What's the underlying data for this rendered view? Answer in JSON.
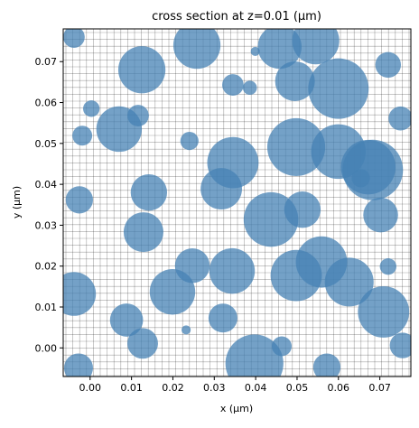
{
  "chart_data": {
    "type": "scatter",
    "title": "cross section at z=0.01 (μm)",
    "x_label": "x (μm)",
    "y_label": "y (μm)",
    "color": "#4682b4",
    "x": [
      -0.0039,
      0.0125,
      0.0258,
      0.0345,
      0.0386,
      0.0458,
      0.0545,
      0.0399,
      0.0495,
      0.06,
      0.072,
      0.0003,
      0.0116,
      0.075,
      -0.0019,
      0.007,
      0.024,
      0.0345,
      0.0498,
      0.06,
      0.0672,
      0.0683,
      0.0654,
      -0.0026,
      0.0142,
      0.0317,
      0.0437,
      0.0513,
      0.0702,
      0.0129,
      0.0247,
      0.0343,
      0.0498,
      0.0559,
      0.0626,
      0.072,
      -0.0039,
      0.0199,
      0.0088,
      0.0321,
      0.0709,
      0.0127,
      0.0232,
      0.0463,
      0.0397,
      -0.0028,
      0.0572,
      0.0755
    ],
    "values": [
      0.076,
      0.068,
      0.074,
      0.0643,
      0.0636,
      0.0736,
      0.0751,
      0.0725,
      0.0652,
      0.0634,
      0.0692,
      0.0585,
      0.0568,
      0.0561,
      0.0519,
      0.0535,
      0.0506,
      0.0453,
      0.0491,
      0.048,
      0.0442,
      0.0435,
      0.0415,
      0.0362,
      0.038,
      0.0389,
      0.0314,
      0.0338,
      0.0325,
      0.0283,
      0.0201,
      0.0188,
      0.0177,
      0.021,
      0.0161,
      0.0199,
      0.0132,
      0.0137,
      0.0068,
      0.0073,
      0.0088,
      0.0011,
      0.0044,
      0.0004,
      -0.0038,
      -0.0049,
      -0.0047,
      0.0006
    ],
    "radii": [
      0.0026,
      0.0057,
      0.0057,
      0.0026,
      0.0017,
      0.0053,
      0.0057,
      0.0011,
      0.0048,
      0.0073,
      0.0031,
      0.002,
      0.0026,
      0.0029,
      0.0024,
      0.0055,
      0.0022,
      0.0062,
      0.007,
      0.0066,
      0.0066,
      0.0073,
      0.0022,
      0.0033,
      0.0044,
      0.005,
      0.0066,
      0.0044,
      0.0042,
      0.0048,
      0.0042,
      0.0055,
      0.0062,
      0.0062,
      0.0059,
      0.002,
      0.0053,
      0.0055,
      0.004,
      0.0035,
      0.0062,
      0.0037,
      0.0011,
      0.0024,
      0.007,
      0.0035,
      0.0033,
      0.0031
    ],
    "xlim": [
      -0.0065,
      0.0775
    ],
    "ylim": [
      -0.007,
      0.078
    ],
    "xticks": [
      {
        "value": 0,
        "label": "0.00"
      },
      0.01,
      0.02,
      0.03,
      0.04,
      0.05,
      0.06,
      0.07
    ],
    "yticks": [
      {
        "value": 0,
        "label": "0.00"
      },
      0.01,
      0.02,
      0.03,
      0.04,
      0.05,
      0.06,
      0.07
    ]
  }
}
